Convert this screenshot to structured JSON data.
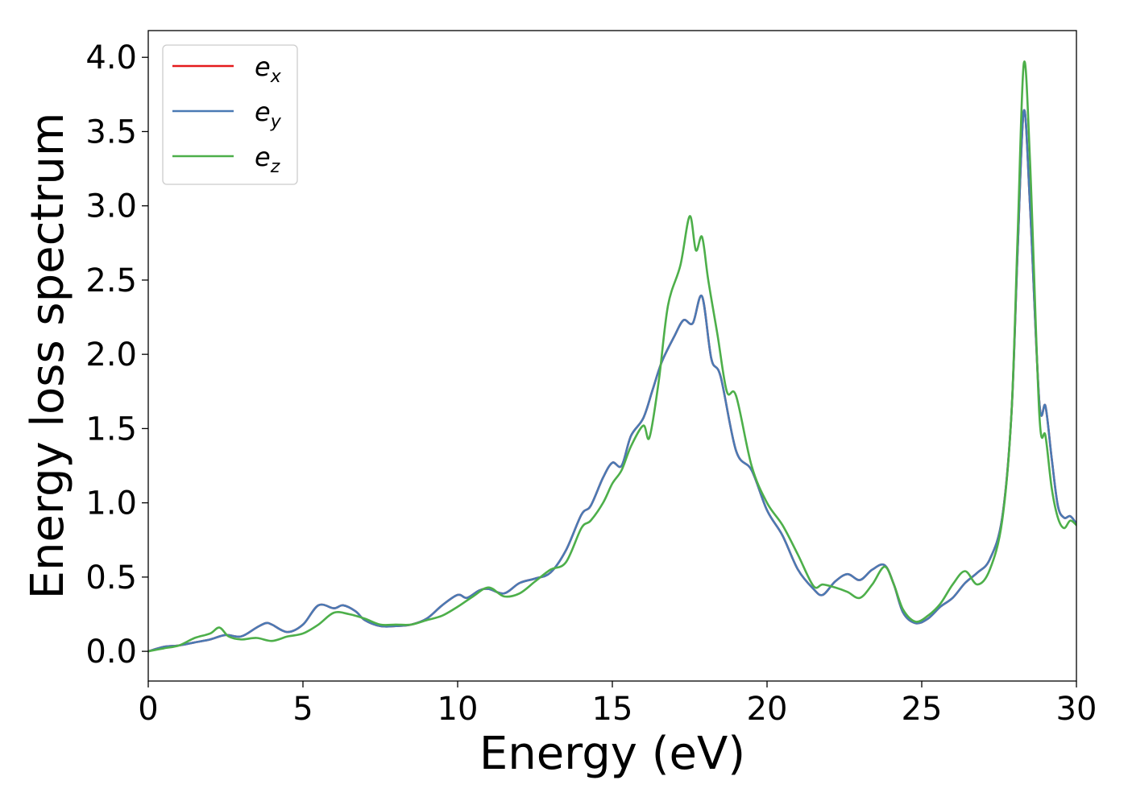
{
  "chart_data": {
    "type": "line",
    "title": "",
    "xlabel": "Energy (eV)",
    "ylabel": "Energy loss spectrum",
    "xlim": [
      0,
      30
    ],
    "ylim": [
      -0.2,
      4.18
    ],
    "xticks": [
      0,
      5,
      10,
      15,
      20,
      25,
      30
    ],
    "yticks": [
      0.0,
      0.5,
      1.0,
      1.5,
      2.0,
      2.5,
      3.0,
      3.5,
      4.0
    ],
    "grid": false,
    "legend_position": "upper-left",
    "series": [
      {
        "name": "e_x",
        "legend_base": "e",
        "legend_sub": "x",
        "color": "#e41a1c",
        "x": [
          0,
          0.5,
          1,
          1.5,
          2,
          2.5,
          3,
          3.5,
          3.8,
          4,
          4.5,
          5,
          5.5,
          6,
          6.3,
          6.7,
          7,
          7.5,
          8,
          8.5,
          9,
          9.5,
          10,
          10.3,
          10.7,
          11,
          11.5,
          12,
          12.5,
          13,
          13.5,
          14,
          14.3,
          14.7,
          15,
          15.3,
          15.6,
          16,
          16.3,
          16.6,
          17,
          17.3,
          17.6,
          17.9,
          18.2,
          18.5,
          19,
          19.5,
          20,
          20.5,
          21,
          21.5,
          21.8,
          22.2,
          22.6,
          23,
          23.4,
          23.8,
          24.1,
          24.4,
          24.8,
          25.2,
          25.6,
          26,
          26.4,
          26.8,
          27.2,
          27.6,
          27.9,
          28.1,
          28.3,
          28.5,
          28.8,
          29,
          29.2,
          29.4,
          29.6,
          29.8,
          30
        ],
        "y": [
          0,
          0.03,
          0.04,
          0.06,
          0.08,
          0.11,
          0.1,
          0.16,
          0.19,
          0.18,
          0.13,
          0.18,
          0.31,
          0.29,
          0.31,
          0.27,
          0.21,
          0.17,
          0.17,
          0.18,
          0.22,
          0.31,
          0.38,
          0.36,
          0.41,
          0.42,
          0.39,
          0.46,
          0.49,
          0.53,
          0.68,
          0.92,
          0.98,
          1.17,
          1.27,
          1.25,
          1.45,
          1.57,
          1.76,
          1.95,
          2.12,
          2.23,
          2.21,
          2.39,
          1.97,
          1.85,
          1.35,
          1.22,
          0.95,
          0.78,
          0.55,
          0.42,
          0.38,
          0.47,
          0.52,
          0.48,
          0.55,
          0.58,
          0.45,
          0.26,
          0.19,
          0.22,
          0.3,
          0.36,
          0.46,
          0.53,
          0.62,
          0.9,
          1.6,
          2.7,
          3.64,
          3.0,
          1.68,
          1.65,
          1.3,
          0.98,
          0.9,
          0.91,
          0.86
        ]
      },
      {
        "name": "e_y",
        "legend_base": "e",
        "legend_sub": "y",
        "color": "#4a7ab4",
        "x": [
          0,
          0.5,
          1,
          1.5,
          2,
          2.5,
          3,
          3.5,
          3.8,
          4,
          4.5,
          5,
          5.5,
          6,
          6.3,
          6.7,
          7,
          7.5,
          8,
          8.5,
          9,
          9.5,
          10,
          10.3,
          10.7,
          11,
          11.5,
          12,
          12.5,
          13,
          13.5,
          14,
          14.3,
          14.7,
          15,
          15.3,
          15.6,
          16,
          16.3,
          16.6,
          17,
          17.3,
          17.6,
          17.9,
          18.2,
          18.5,
          19,
          19.5,
          20,
          20.5,
          21,
          21.5,
          21.8,
          22.2,
          22.6,
          23,
          23.4,
          23.8,
          24.1,
          24.4,
          24.8,
          25.2,
          25.6,
          26,
          26.4,
          26.8,
          27.2,
          27.6,
          27.9,
          28.1,
          28.3,
          28.5,
          28.8,
          29,
          29.2,
          29.4,
          29.6,
          29.8,
          30
        ],
        "y": [
          0,
          0.03,
          0.04,
          0.06,
          0.08,
          0.11,
          0.1,
          0.16,
          0.19,
          0.18,
          0.13,
          0.18,
          0.31,
          0.29,
          0.31,
          0.27,
          0.21,
          0.17,
          0.17,
          0.18,
          0.22,
          0.31,
          0.38,
          0.36,
          0.41,
          0.42,
          0.39,
          0.46,
          0.49,
          0.53,
          0.68,
          0.92,
          0.98,
          1.17,
          1.27,
          1.25,
          1.45,
          1.57,
          1.76,
          1.95,
          2.12,
          2.23,
          2.21,
          2.39,
          1.97,
          1.85,
          1.35,
          1.22,
          0.95,
          0.78,
          0.55,
          0.42,
          0.38,
          0.47,
          0.52,
          0.48,
          0.55,
          0.58,
          0.45,
          0.26,
          0.19,
          0.22,
          0.3,
          0.36,
          0.46,
          0.53,
          0.62,
          0.9,
          1.6,
          2.7,
          3.64,
          3.0,
          1.68,
          1.65,
          1.3,
          0.98,
          0.9,
          0.91,
          0.86
        ]
      },
      {
        "name": "e_z",
        "legend_base": "e",
        "legend_sub": "z",
        "color": "#4daf4a",
        "x": [
          0,
          0.5,
          1,
          1.5,
          2,
          2.3,
          2.6,
          3,
          3.5,
          4,
          4.5,
          5,
          5.5,
          6,
          6.5,
          7,
          7.5,
          8,
          8.5,
          9,
          9.5,
          10,
          10.5,
          11,
          11.5,
          12,
          12.5,
          13,
          13.5,
          14,
          14.3,
          14.7,
          15,
          15.3,
          15.6,
          16,
          16.2,
          16.5,
          16.8,
          17.2,
          17.5,
          17.7,
          17.9,
          18.1,
          18.4,
          18.7,
          19,
          19.5,
          20,
          20.5,
          21,
          21.5,
          21.8,
          22.2,
          22.6,
          23,
          23.4,
          23.8,
          24.1,
          24.4,
          24.8,
          25.2,
          25.6,
          26,
          26.4,
          26.8,
          27.2,
          27.6,
          27.9,
          28.1,
          28.3,
          28.5,
          28.8,
          29,
          29.2,
          29.4,
          29.6,
          29.8,
          30
        ],
        "y": [
          0,
          0.02,
          0.04,
          0.09,
          0.12,
          0.16,
          0.1,
          0.08,
          0.09,
          0.07,
          0.1,
          0.12,
          0.18,
          0.26,
          0.25,
          0.22,
          0.18,
          0.18,
          0.18,
          0.21,
          0.24,
          0.3,
          0.37,
          0.43,
          0.37,
          0.39,
          0.47,
          0.55,
          0.6,
          0.83,
          0.88,
          1.0,
          1.13,
          1.22,
          1.38,
          1.52,
          1.44,
          1.82,
          2.33,
          2.6,
          2.93,
          2.7,
          2.79,
          2.5,
          2.13,
          1.75,
          1.72,
          1.25,
          1.0,
          0.85,
          0.65,
          0.44,
          0.45,
          0.43,
          0.4,
          0.36,
          0.45,
          0.57,
          0.45,
          0.28,
          0.2,
          0.24,
          0.32,
          0.45,
          0.54,
          0.45,
          0.55,
          0.88,
          1.6,
          2.8,
          3.96,
          3.3,
          1.6,
          1.45,
          1.1,
          0.9,
          0.83,
          0.88,
          0.85
        ]
      }
    ]
  }
}
